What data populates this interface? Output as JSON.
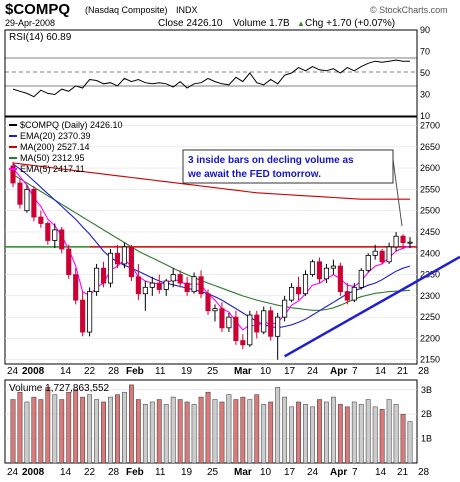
{
  "header": {
    "symbol": "$COMPQ",
    "name": "(Nasdaq Composite)",
    "exchange": "INDX",
    "date": "29-Apr-2008",
    "close_label": "Close 2426.10",
    "volume_label": "Volume 1.7B",
    "change_label": "Chg +1.70 (+0.07%)",
    "change_arrow": "▲",
    "brand": "© StockCharts.com"
  },
  "rsi_panel": {
    "label": "RSI(14) 60.89",
    "ticks": [
      "90",
      "70",
      "50",
      "30",
      "10"
    ]
  },
  "price_panel": {
    "legend": [
      {
        "text": "$COMPQ (Daily) 2426.10",
        "color": "#000000"
      },
      {
        "text": "EMA(20) 2370.39",
        "color": "#1f1fc8"
      },
      {
        "text": "MA(200) 2527.14",
        "color": "#cc0000"
      },
      {
        "text": "MA(50) 2312.95",
        "color": "#2f7a2f"
      },
      {
        "text": "EMA(5) 2417.11",
        "color": "#ff00ff"
      }
    ],
    "annotation": [
      "3 inside bars on decling volume  as",
      "we await the FED tomorrow."
    ],
    "x_labels": [
      "24",
      "2008",
      "14",
      "22",
      "28",
      "Feb",
      "11",
      "19",
      "25",
      "Mar",
      "10",
      "17",
      "24",
      "Apr",
      "7",
      "14",
      "21",
      "28"
    ]
  },
  "volume_panel": {
    "label": "Volume 1,727,863,552",
    "ticks": [
      "3B",
      "2B",
      "1B"
    ]
  },
  "colors": {
    "up": "#000000",
    "down": "#cc0033",
    "vol_down": "#d97a7a",
    "vol_up": "#cccccc",
    "trendline": "#1f1fd0",
    "support": "#228b22",
    "resistance": "#cc0000",
    "annotation_text": "#1414c8"
  },
  "chart_data": [
    {
      "type": "line",
      "title": "RSI(14)",
      "y_range": [
        10,
        90
      ],
      "reference_lines": [
        70,
        50,
        30
      ],
      "values": [
        35,
        33,
        31,
        28,
        34,
        31,
        30,
        35,
        33,
        38,
        36,
        44,
        43,
        40,
        41,
        38,
        45,
        42,
        44,
        41,
        40,
        41,
        40,
        37,
        42,
        36,
        40,
        41,
        45,
        42,
        40,
        39,
        46,
        42,
        50,
        41,
        39,
        44,
        40,
        48,
        50,
        55,
        52,
        56,
        53,
        52,
        54,
        50,
        55,
        52,
        56,
        59,
        61,
        60,
        61,
        62,
        61,
        61
      ]
    },
    {
      "type": "candlestick",
      "title": "$COMPQ (Daily)",
      "y_range": [
        2140,
        2720
      ],
      "y_ticks": [
        2700,
        2650,
        2600,
        2550,
        2500,
        2450,
        2400,
        2350,
        2300,
        2250,
        2200,
        2150
      ],
      "horizontal_lines": [
        2415
      ],
      "candles": [
        [
          2605,
          2615,
          2555,
          2565
        ],
        [
          2565,
          2575,
          2505,
          2515
        ],
        [
          2500,
          2560,
          2495,
          2550
        ],
        [
          2550,
          2558,
          2475,
          2485
        ],
        [
          2485,
          2500,
          2460,
          2470
        ],
        [
          2470,
          2475,
          2420,
          2430
        ],
        [
          2430,
          2470,
          2412,
          2455
        ],
        [
          2455,
          2462,
          2400,
          2410
        ],
        [
          2410,
          2420,
          2340,
          2350
        ],
        [
          2350,
          2365,
          2280,
          2290
        ],
        [
          2290,
          2310,
          2205,
          2215
        ],
        [
          2215,
          2320,
          2205,
          2310
        ],
        [
          2310,
          2375,
          2300,
          2365
        ],
        [
          2365,
          2380,
          2320,
          2330
        ],
        [
          2330,
          2410,
          2320,
          2400
        ],
        [
          2400,
          2420,
          2365,
          2375
        ],
        [
          2375,
          2425,
          2365,
          2415
        ],
        [
          2415,
          2420,
          2335,
          2345
        ],
        [
          2345,
          2375,
          2290,
          2305
        ],
        [
          2305,
          2335,
          2265,
          2320
        ],
        [
          2320,
          2345,
          2300,
          2330
        ],
        [
          2330,
          2350,
          2305,
          2315
        ],
        [
          2315,
          2340,
          2300,
          2335
        ],
        [
          2335,
          2365,
          2320,
          2350
        ],
        [
          2350,
          2360,
          2320,
          2330
        ],
        [
          2330,
          2345,
          2300,
          2310
        ],
        [
          2310,
          2355,
          2305,
          2345
        ],
        [
          2345,
          2360,
          2295,
          2305
        ],
        [
          2305,
          2315,
          2255,
          2265
        ],
        [
          2265,
          2280,
          2240,
          2270
        ],
        [
          2270,
          2285,
          2215,
          2225
        ],
        [
          2225,
          2260,
          2215,
          2250
        ],
        [
          2250,
          2265,
          2185,
          2195
        ],
        [
          2195,
          2210,
          2175,
          2185
        ],
        [
          2185,
          2265,
          2180,
          2255
        ],
        [
          2255,
          2265,
          2200,
          2215
        ],
        [
          2215,
          2275,
          2210,
          2265
        ],
        [
          2265,
          2275,
          2195,
          2205
        ],
        [
          2205,
          2260,
          2150,
          2250
        ],
        [
          2250,
          2300,
          2240,
          2290
        ],
        [
          2290,
          2330,
          2285,
          2320
        ],
        [
          2320,
          2345,
          2290,
          2305
        ],
        [
          2305,
          2360,
          2300,
          2350
        ],
        [
          2350,
          2385,
          2345,
          2380
        ],
        [
          2380,
          2390,
          2330,
          2340
        ],
        [
          2340,
          2375,
          2330,
          2365
        ],
        [
          2365,
          2385,
          2350,
          2370
        ],
        [
          2370,
          2378,
          2300,
          2310
        ],
        [
          2310,
          2330,
          2280,
          2290
        ],
        [
          2290,
          2330,
          2285,
          2320
        ],
        [
          2320,
          2365,
          2315,
          2360
        ],
        [
          2360,
          2400,
          2355,
          2395
        ],
        [
          2395,
          2420,
          2385,
          2405
        ],
        [
          2405,
          2410,
          2375,
          2380
        ],
        [
          2380,
          2425,
          2375,
          2415
        ],
        [
          2415,
          2450,
          2405,
          2440
        ],
        [
          2440,
          2445,
          2410,
          2425
        ],
        [
          2424,
          2438,
          2412,
          2426
        ]
      ],
      "series": [
        {
          "name": "MA(200)",
          "values": [
            2612,
            2610,
            2608,
            2606,
            2604,
            2602,
            2600,
            2598,
            2596,
            2594,
            2592,
            2590,
            2588,
            2586,
            2584,
            2582,
            2580,
            2578,
            2576,
            2574,
            2572,
            2570,
            2568,
            2566,
            2564,
            2562,
            2560,
            2558,
            2556,
            2554,
            2552,
            2550,
            2548,
            2546,
            2544,
            2542,
            2541,
            2540,
            2539,
            2538,
            2537,
            2536,
            2535,
            2534,
            2533,
            2532,
            2531,
            2530,
            2529,
            2528,
            2527,
            2527,
            2527,
            2527,
            2527,
            2527,
            2527,
            2527
          ]
        },
        {
          "name": "MA(50)",
          "values": [
            2585,
            2575,
            2565,
            2555,
            2545,
            2535,
            2525,
            2515,
            2505,
            2495,
            2485,
            2475,
            2465,
            2455,
            2445,
            2435,
            2425,
            2415,
            2405,
            2397,
            2389,
            2381,
            2373,
            2365,
            2357,
            2350,
            2343,
            2336,
            2330,
            2324,
            2318,
            2312,
            2306,
            2300,
            2295,
            2290,
            2286,
            2282,
            2278,
            2275,
            2272,
            2270,
            2268,
            2266,
            2266,
            2268,
            2272,
            2278,
            2285,
            2292,
            2298,
            2302,
            2306,
            2308,
            2310,
            2311,
            2312,
            2313
          ]
        },
        {
          "name": "EMA(20)",
          "values": [
            2610,
            2598,
            2585,
            2570,
            2555,
            2540,
            2525,
            2510,
            2495,
            2480,
            2462,
            2445,
            2425,
            2405,
            2390,
            2380,
            2372,
            2365,
            2358,
            2350,
            2342,
            2335,
            2330,
            2326,
            2322,
            2318,
            2314,
            2310,
            2305,
            2298,
            2290,
            2280,
            2270,
            2260,
            2250,
            2240,
            2232,
            2228,
            2225,
            2228,
            2232,
            2238,
            2245,
            2255,
            2265,
            2275,
            2285,
            2295,
            2305,
            2312,
            2318,
            2325,
            2330,
            2338,
            2348,
            2358,
            2365,
            2370
          ]
        },
        {
          "name": "EMA(5)",
          "values": [
            2600,
            2580,
            2560,
            2530,
            2510,
            2480,
            2465,
            2440,
            2410,
            2370,
            2310,
            2300,
            2320,
            2330,
            2360,
            2370,
            2385,
            2370,
            2345,
            2335,
            2330,
            2328,
            2330,
            2338,
            2335,
            2325,
            2330,
            2325,
            2305,
            2290,
            2270,
            2262,
            2240,
            2220,
            2232,
            2228,
            2240,
            2232,
            2238,
            2255,
            2278,
            2288,
            2305,
            2325,
            2330,
            2340,
            2350,
            2340,
            2325,
            2322,
            2335,
            2355,
            2370,
            2375,
            2390,
            2405,
            2412,
            2417
          ]
        }
      ],
      "trendline": [
        [
          39,
          2158
        ],
        [
          57,
          2325
        ]
      ]
    },
    {
      "type": "bar",
      "title": "Volume",
      "y_range": [
        0,
        3.4
      ],
      "y_ticks": [
        3,
        2,
        1
      ],
      "values": [
        2.6,
        2.9,
        2.5,
        2.7,
        2.6,
        3.1,
        2.8,
        2.6,
        2.9,
        3.0,
        2.7,
        2.8,
        2.6,
        2.5,
        2.7,
        2.8,
        2.9,
        3.2,
        2.6,
        2.4,
        2.5,
        2.6,
        2.4,
        2.7,
        2.6,
        2.5,
        2.4,
        2.7,
        2.9,
        2.6,
        2.5,
        2.8,
        2.6,
        2.7,
        2.6,
        2.8,
        2.4,
        2.5,
        3.1,
        2.7,
        2.3,
        2.5,
        2.4,
        2.3,
        2.6,
        2.5,
        2.7,
        2.4,
        2.3,
        2.5,
        2.4,
        2.6,
        2.3,
        2.2,
        2.6,
        2.4,
        2.0,
        1.7
      ],
      "colors_by_close": "down red, up grey"
    }
  ]
}
